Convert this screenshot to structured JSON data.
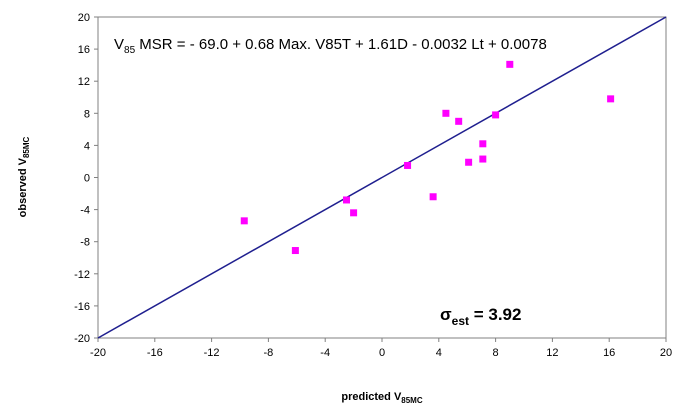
{
  "chart_data": {
    "type": "scatter",
    "title": "",
    "xlabel": {
      "main": "predicted V",
      "sub": "85MC"
    },
    "ylabel": {
      "main": "observed V",
      "sub": "85MC"
    },
    "xlim": [
      -20,
      20
    ],
    "ylim": [
      -20,
      20
    ],
    "xticks": [
      -20,
      -16,
      -12,
      -8,
      -4,
      0,
      4,
      8,
      12,
      16,
      20
    ],
    "yticks": [
      -20,
      -16,
      -12,
      -8,
      -4,
      0,
      4,
      8,
      12,
      16,
      20
    ],
    "grid": false,
    "series": [
      {
        "color": "#ff00ff",
        "marker": "square",
        "points": [
          {
            "x": -9.7,
            "y": -5.4
          },
          {
            "x": -6.1,
            "y": -9.1
          },
          {
            "x": -2.5,
            "y": -2.8
          },
          {
            "x": -2.0,
            "y": -4.4
          },
          {
            "x": 1.8,
            "y": 1.5
          },
          {
            "x": 3.6,
            "y": -2.4
          },
          {
            "x": 4.5,
            "y": 8.0
          },
          {
            "x": 5.4,
            "y": 7.0
          },
          {
            "x": 6.1,
            "y": 1.9
          },
          {
            "x": 7.1,
            "y": 2.3
          },
          {
            "x": 7.1,
            "y": 4.2
          },
          {
            "x": 8.0,
            "y": 7.8
          },
          {
            "x": 9.0,
            "y": 14.1
          },
          {
            "x": 16.1,
            "y": 9.8
          }
        ]
      }
    ],
    "reference_line": {
      "from": [
        -20,
        -20
      ],
      "to": [
        20,
        20
      ],
      "color": "#1f1f8f"
    },
    "annotations": {
      "equation": {
        "V": "V",
        "sub": "85",
        "rest": " MSR = - 69.0 + 0.68 Max. V85T + 1.61D - 0.0032 Lt + 0.0078"
      },
      "sigma": {
        "symbol": "σ",
        "sub": "est",
        "rest": " = 3.92"
      }
    }
  }
}
